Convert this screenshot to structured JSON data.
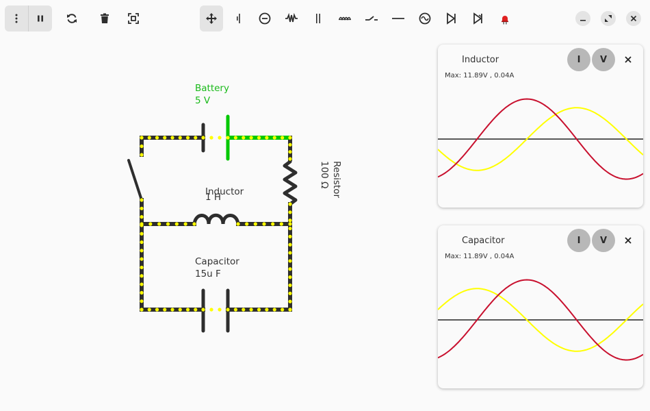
{
  "toolbar": {
    "left_buttons": [
      {
        "name": "menu-button",
        "icon": "menu-dots-icon"
      },
      {
        "name": "pause-button",
        "icon": "pause-icon"
      },
      {
        "name": "reset-button",
        "icon": "refresh-icon"
      },
      {
        "name": "delete-button",
        "icon": "trash-icon"
      },
      {
        "name": "screenshot-button",
        "icon": "screenshot-icon"
      }
    ],
    "tools": [
      {
        "name": "move",
        "icon": "move-icon",
        "active": true
      },
      {
        "name": "battery",
        "icon": "battery-icon"
      },
      {
        "name": "ac-source",
        "icon": "ac-source-icon"
      },
      {
        "name": "resistor",
        "icon": "resistor-icon"
      },
      {
        "name": "capacitor",
        "icon": "capacitor-icon"
      },
      {
        "name": "inductor",
        "icon": "inductor-icon"
      },
      {
        "name": "switch",
        "icon": "switch-icon"
      },
      {
        "name": "wire",
        "icon": "wire-icon"
      },
      {
        "name": "ac-generator",
        "icon": "sine-source-icon"
      },
      {
        "name": "diode",
        "icon": "diode-icon"
      },
      {
        "name": "zener-diode",
        "icon": "zener-diode-icon"
      },
      {
        "name": "led",
        "icon": "led-icon"
      }
    ],
    "accent_active": "#e4e4e4"
  },
  "window_controls": [
    "minimize",
    "maximize",
    "close"
  ],
  "circuit": {
    "battery": {
      "name": "Battery",
      "value": "5 V"
    },
    "resistor": {
      "name": "Resistor",
      "value": "100 Ω"
    },
    "inductor": {
      "name": "Inductor",
      "value": "1 H"
    },
    "capacitor": {
      "name": "Capacitor",
      "value": "15u F"
    },
    "colors": {
      "wire": "#2e2e2e",
      "current_dots": "#ffff00",
      "live_wire": "#00c800"
    }
  },
  "panels": [
    {
      "title": "Inductor",
      "max": "Max: 11.89V , 0.04A",
      "buttons": {
        "current": "I",
        "voltage": "V"
      },
      "chart_data": {
        "type": "line",
        "series": [
          {
            "name": "current",
            "color": "#c8102e",
            "amplitude": 0.78,
            "phase_deg": 0,
            "offset": 0
          },
          {
            "name": "voltage",
            "color": "#ffff00",
            "amplitude": 0.61,
            "phase_deg": -90,
            "offset": 0
          }
        ],
        "ylim": [
          -1,
          1
        ],
        "period_fraction": 0.97
      }
    },
    {
      "title": "Capacitor",
      "max": "Max: 11.89V , 0.04A",
      "buttons": {
        "current": "I",
        "voltage": "V"
      },
      "chart_data": {
        "type": "line",
        "series": [
          {
            "name": "current",
            "color": "#c8102e",
            "amplitude": 0.78,
            "phase_deg": 0,
            "offset": 0
          },
          {
            "name": "voltage",
            "color": "#ffff00",
            "amplitude": 0.61,
            "phase_deg": 90,
            "offset": 0
          }
        ],
        "ylim": [
          -1,
          1
        ],
        "period_fraction": 0.97
      }
    }
  ]
}
